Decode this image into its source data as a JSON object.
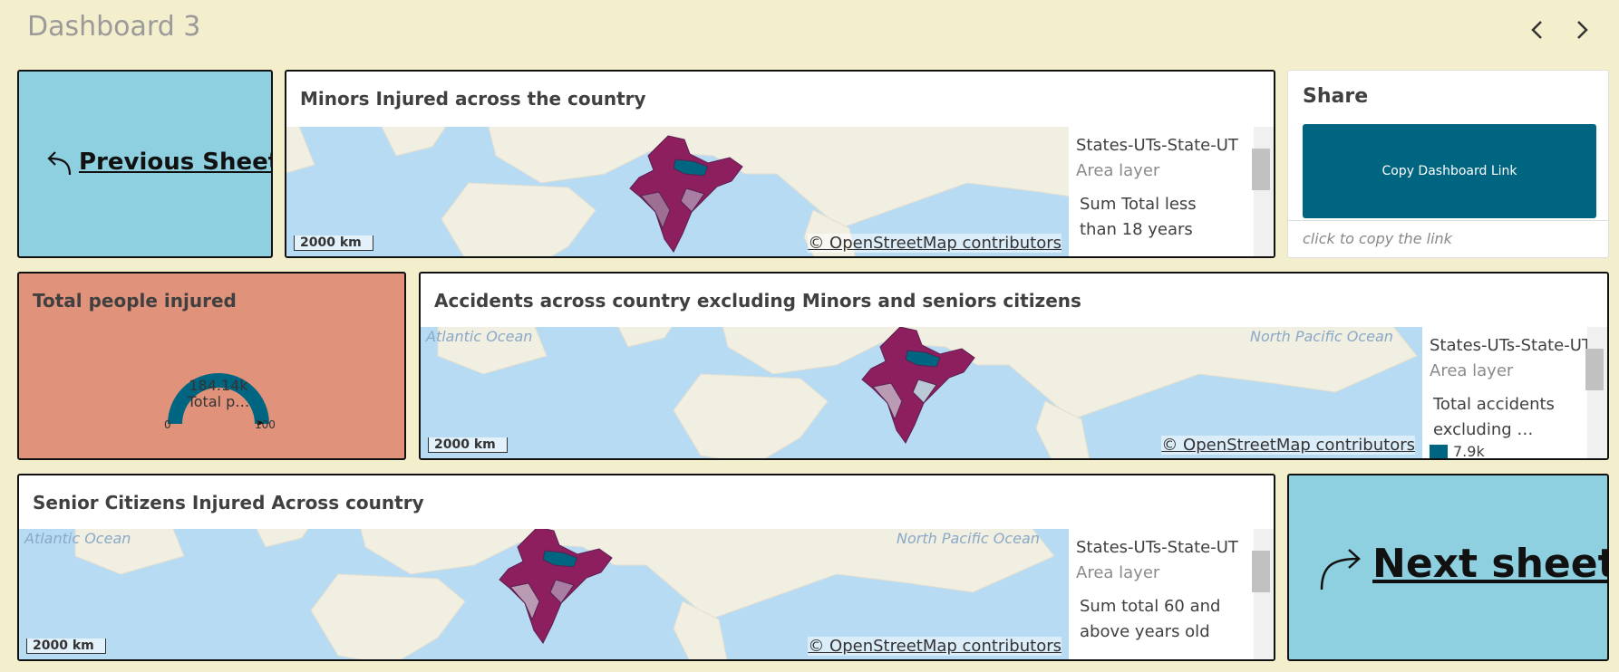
{
  "header": {
    "title": "Dashboard 3"
  },
  "nav": {
    "previous": "Previous Sheet",
    "next": "Next sheet"
  },
  "maps": [
    {
      "title": "Minors Injured across the country",
      "legend_title": "States-UTs-State-UT",
      "legend_layer": "Area layer",
      "legend_measure": "Sum Total less than 18 years",
      "scale": "2000 km",
      "attribution": "© OpenStreetMap contributors"
    },
    {
      "title": "Accidents across country excluding Minors and seniors citizens",
      "legend_title": "States-UTs-State-UT",
      "legend_layer": "Area layer",
      "legend_measure": "Total accidents excluding …",
      "legend_value": "7.9k",
      "scale": "2000 km",
      "attribution": "© OpenStreetMap contributors",
      "labels": [
        "Atlantic Ocean",
        "North Pacific Ocean"
      ]
    },
    {
      "title": "Senior Citizens Injured Across country",
      "legend_title": "States-UTs-State-UT",
      "legend_layer": "Area layer",
      "legend_measure": "Sum total 60 and above years old",
      "scale": "2000 km",
      "attribution": "© OpenStreetMap contributors",
      "labels": [
        "Atlantic Ocean",
        "North Pacific Ocean"
      ]
    }
  ],
  "share": {
    "title": "Share",
    "button": "Copy Dashboard Link",
    "hint": "click to copy the link"
  },
  "kpi": {
    "title": "Total people injured",
    "value": "184.14k",
    "label": "Total p…",
    "min": 0,
    "max": 100
  }
}
